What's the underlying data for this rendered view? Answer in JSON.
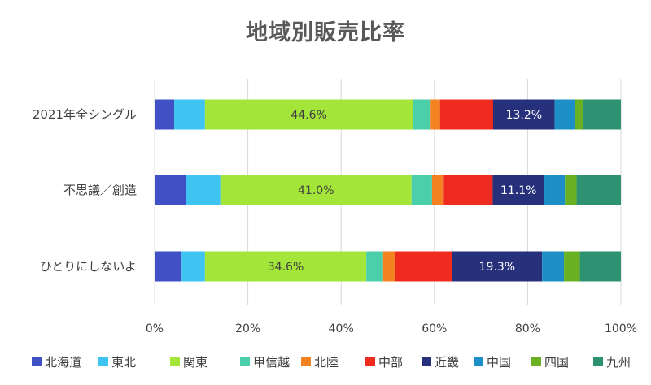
{
  "chart_data": {
    "type": "bar",
    "orientation": "horizontal",
    "stacked": "percent",
    "title": "地域別販売比率",
    "categories": [
      "2021年全シングル",
      "不思議／創造",
      "ひとりにしないよ"
    ],
    "series": [
      {
        "name": "北海道",
        "color": "#3f51c4",
        "values": [
          4.2,
          6.7,
          5.8
        ]
      },
      {
        "name": "東北",
        "color": "#3fc3f0",
        "values": [
          6.6,
          7.4,
          5.0
        ]
      },
      {
        "name": "関東",
        "color": "#a3e639",
        "values": [
          44.6,
          41.0,
          34.6
        ]
      },
      {
        "name": "甲信越",
        "color": "#4bcfab",
        "values": [
          3.8,
          4.4,
          3.6
        ]
      },
      {
        "name": "北陸",
        "color": "#f58220",
        "values": [
          2.0,
          2.5,
          2.6
        ]
      },
      {
        "name": "中部",
        "color": "#ef2b1f",
        "values": [
          11.4,
          10.5,
          12.2
        ]
      },
      {
        "name": "近畿",
        "color": "#27307a",
        "values": [
          13.2,
          11.1,
          19.3
        ]
      },
      {
        "name": "中国",
        "color": "#1b8fc6",
        "values": [
          4.4,
          4.4,
          4.7
        ]
      },
      {
        "name": "四国",
        "color": "#6ab023",
        "values": [
          1.6,
          2.5,
          3.4
        ]
      },
      {
        "name": "九州",
        "color": "#2c9272",
        "values": [
          8.2,
          9.5,
          8.8
        ]
      }
    ],
    "data_labels": [
      {
        "category": 0,
        "series": 2,
        "text": "44.6%"
      },
      {
        "category": 0,
        "series": 6,
        "text": "13.2%"
      },
      {
        "category": 1,
        "series": 2,
        "text": "41.0%"
      },
      {
        "category": 1,
        "series": 6,
        "text": "11.1%"
      },
      {
        "category": 2,
        "series": 2,
        "text": "34.6%"
      },
      {
        "category": 2,
        "series": 6,
        "text": "19.3%"
      }
    ],
    "x_ticks": [
      "0%",
      "20%",
      "40%",
      "60%",
      "80%",
      "100%"
    ],
    "xlim": [
      0,
      100
    ],
    "grid": true,
    "legend_position": "bottom"
  }
}
